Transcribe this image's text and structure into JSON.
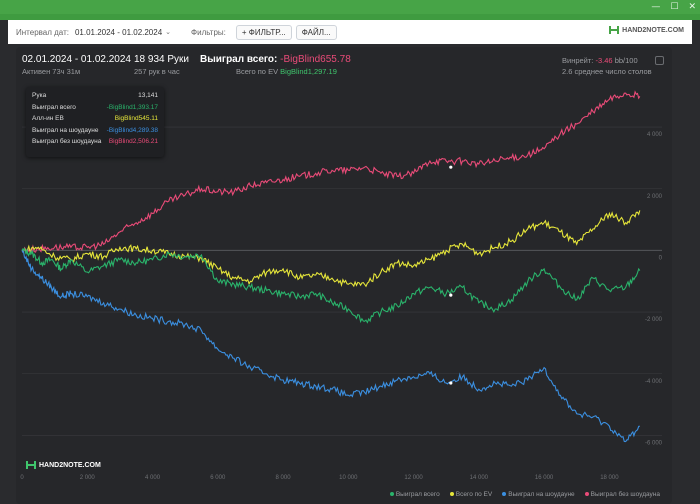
{
  "toolbar": {
    "date_label": "Интервал дат:",
    "date_range": "01.01.2024 - 01.02.2024",
    "filters_label": "Фильтры:",
    "filter_button": "ФИЛЬТР...",
    "file_button": "ФАЙЛ...",
    "logo_text": "HAND2NOTE.COM"
  },
  "window_controls": [
    "—",
    "☐",
    "✕"
  ],
  "header": {
    "date_range": "02.01.2024 - 01.02.2024",
    "active": "Активен 73ч 31м",
    "hands": "18 934 Руки",
    "hands_per_hour": "257 рук в час",
    "won_total_label": "Выиграл всего:",
    "won_total_value": "-BigBlind655.78",
    "ev_label": "Всего по EV",
    "ev_value": "BigBlind1,297.19",
    "winrate_label": "Винрейт:",
    "winrate_value": "-3.46",
    "winrate_suffix": "bb/100",
    "avg_tables": "2.6 среднее число столов"
  },
  "tooltip": {
    "hand_label": "Рука",
    "hand_value": "13,141",
    "won_label": "Выиграл всего",
    "won_value": "-BigBlind1,393.17",
    "allin_label": "Алл-ин EB",
    "allin_value": "BigBlind545.11",
    "sd_label": "Выиграл на шоудауне",
    "sd_value": "-BigBlind4,289.38",
    "nsd_label": "Выиграл без шоудауна",
    "nsd_value": "BigBlind2,506.21"
  },
  "bottom_logo": "HAND2NOTE.COM",
  "colors": {
    "won": "#2ab36b",
    "ev": "#e6e63a",
    "showdown": "#3b8fe0",
    "non_showdown": "#e94b78"
  },
  "chart_data": {
    "type": "line",
    "x_ticks": [
      "0",
      "2 000",
      "4 000",
      "6 000",
      "8 000",
      "10 000",
      "12 000",
      "14 000",
      "16 000",
      "18 000"
    ],
    "y_ticks": [
      "4 000",
      "2 000",
      "0",
      "-2 000",
      "-4 000",
      "-6 000"
    ],
    "xlim": [
      0,
      19000
    ],
    "ylim": [
      -6700,
      5300
    ],
    "legend": [
      "Выиграл всего",
      "Всего по EV",
      "Выиграл на шоудауне",
      "Выиграл без шоудауна"
    ],
    "series": [
      {
        "name": "Выиграл всего",
        "points": [
          [
            0,
            0
          ],
          [
            300,
            -100
          ],
          [
            600,
            -400
          ],
          [
            900,
            -300
          ],
          [
            1200,
            -600
          ],
          [
            1500,
            -300
          ],
          [
            2000,
            -700
          ],
          [
            2500,
            -500
          ],
          [
            3000,
            -300
          ],
          [
            3500,
            -400
          ],
          [
            4000,
            -300
          ],
          [
            4500,
            -100
          ],
          [
            5000,
            -200
          ],
          [
            5500,
            -150
          ],
          [
            6000,
            -1000
          ],
          [
            6500,
            -1100
          ],
          [
            7000,
            -1200
          ],
          [
            7500,
            -1300
          ],
          [
            8000,
            -1400
          ],
          [
            8500,
            -1500
          ],
          [
            9000,
            -1400
          ],
          [
            9500,
            -1700
          ],
          [
            10000,
            -1900
          ],
          [
            10500,
            -2300
          ],
          [
            11000,
            -2000
          ],
          [
            11500,
            -1800
          ],
          [
            12000,
            -1400
          ],
          [
            12500,
            -1200
          ],
          [
            13000,
            -1400
          ],
          [
            13500,
            -1200
          ],
          [
            14000,
            -1700
          ],
          [
            14500,
            -1900
          ],
          [
            15000,
            -1600
          ],
          [
            15500,
            -1000
          ],
          [
            16000,
            -600
          ],
          [
            16500,
            -1200
          ],
          [
            17000,
            -1600
          ],
          [
            17500,
            -900
          ],
          [
            18000,
            -1300
          ],
          [
            18500,
            -1200
          ],
          [
            18934,
            -656
          ]
        ]
      },
      {
        "name": "Всего по EV",
        "points": [
          [
            0,
            0
          ],
          [
            500,
            100
          ],
          [
            1000,
            -200
          ],
          [
            1500,
            -300
          ],
          [
            2000,
            -100
          ],
          [
            2500,
            -200
          ],
          [
            3000,
            100
          ],
          [
            3500,
            50
          ],
          [
            4000,
            0
          ],
          [
            4500,
            -100
          ],
          [
            5000,
            -200
          ],
          [
            5500,
            -250
          ],
          [
            6000,
            -600
          ],
          [
            6500,
            -900
          ],
          [
            7000,
            -1000
          ],
          [
            7500,
            -700
          ],
          [
            8000,
            -600
          ],
          [
            8500,
            -900
          ],
          [
            9000,
            -800
          ],
          [
            9500,
            -900
          ],
          [
            10000,
            -1100
          ],
          [
            10500,
            -1100
          ],
          [
            11000,
            -700
          ],
          [
            11500,
            -400
          ],
          [
            12000,
            -500
          ],
          [
            12500,
            -300
          ],
          [
            13000,
            0
          ],
          [
            13500,
            200
          ],
          [
            14000,
            -100
          ],
          [
            14500,
            100
          ],
          [
            15000,
            300
          ],
          [
            15500,
            700
          ],
          [
            16000,
            900
          ],
          [
            16500,
            600
          ],
          [
            17000,
            200
          ],
          [
            17500,
            700
          ],
          [
            18000,
            1200
          ],
          [
            18500,
            900
          ],
          [
            18934,
            1297
          ]
        ]
      },
      {
        "name": "Выиграл на шоудауне",
        "points": [
          [
            0,
            0
          ],
          [
            300,
            -600
          ],
          [
            600,
            -900
          ],
          [
            900,
            -1200
          ],
          [
            1200,
            -1500
          ],
          [
            1500,
            -1400
          ],
          [
            2000,
            -1500
          ],
          [
            2500,
            -1700
          ],
          [
            3000,
            -1900
          ],
          [
            3500,
            -2100
          ],
          [
            4000,
            -2200
          ],
          [
            4500,
            -2300
          ],
          [
            5000,
            -2400
          ],
          [
            5500,
            -2600
          ],
          [
            6000,
            -3200
          ],
          [
            6500,
            -3500
          ],
          [
            7000,
            -3800
          ],
          [
            7500,
            -4000
          ],
          [
            8000,
            -4200
          ],
          [
            8500,
            -4300
          ],
          [
            9000,
            -4400
          ],
          [
            9500,
            -4500
          ],
          [
            10000,
            -4700
          ],
          [
            10500,
            -4600
          ],
          [
            11000,
            -4400
          ],
          [
            11500,
            -4200
          ],
          [
            12000,
            -4100
          ],
          [
            12500,
            -4000
          ],
          [
            13000,
            -4300
          ],
          [
            13500,
            -4100
          ],
          [
            14000,
            -4500
          ],
          [
            14500,
            -4300
          ],
          [
            15000,
            -4400
          ],
          [
            15500,
            -4200
          ],
          [
            16000,
            -3800
          ],
          [
            16500,
            -4700
          ],
          [
            17000,
            -5300
          ],
          [
            17500,
            -5400
          ],
          [
            18000,
            -5700
          ],
          [
            18500,
            -6200
          ],
          [
            18934,
            -5700
          ]
        ]
      },
      {
        "name": "Выиграл без шоудауна",
        "points": [
          [
            0,
            0
          ],
          [
            500,
            50
          ],
          [
            1000,
            100
          ],
          [
            1500,
            100
          ],
          [
            2000,
            100
          ],
          [
            2500,
            200
          ],
          [
            3000,
            600
          ],
          [
            3500,
            900
          ],
          [
            4000,
            1200
          ],
          [
            4500,
            1600
          ],
          [
            5000,
            1800
          ],
          [
            5500,
            2000
          ],
          [
            6000,
            1900
          ],
          [
            6500,
            1900
          ],
          [
            7000,
            2100
          ],
          [
            7500,
            2200
          ],
          [
            8000,
            2300
          ],
          [
            8500,
            2400
          ],
          [
            9000,
            2500
          ],
          [
            9500,
            2600
          ],
          [
            10000,
            2600
          ],
          [
            10500,
            2700
          ],
          [
            11000,
            2500
          ],
          [
            11500,
            2400
          ],
          [
            12000,
            2500
          ],
          [
            12500,
            2900
          ],
          [
            13000,
            2900
          ],
          [
            13500,
            2900
          ],
          [
            14000,
            2800
          ],
          [
            14500,
            2900
          ],
          [
            15000,
            3000
          ],
          [
            15500,
            3100
          ],
          [
            16000,
            3300
          ],
          [
            16500,
            3800
          ],
          [
            17000,
            4100
          ],
          [
            17500,
            4500
          ],
          [
            18000,
            4900
          ],
          [
            18500,
            5100
          ],
          [
            18934,
            5000
          ]
        ]
      }
    ]
  }
}
